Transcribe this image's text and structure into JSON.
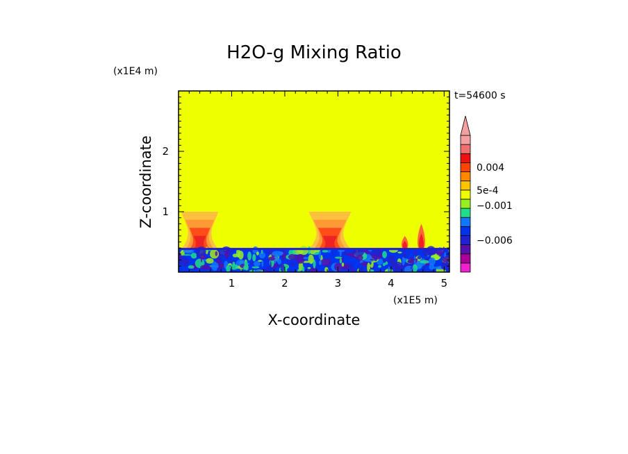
{
  "chart_data": {
    "type": "heatmap",
    "title": "H2O-g Mixing Ratio",
    "xlabel": "X-coordinate",
    "ylabel": "Z-coordinate",
    "x_scale_label": "(x1E5 m)",
    "y_scale_label": "(x1E4 m)",
    "time_label": "t=54600 s",
    "xlim": [
      0,
      5.1
    ],
    "ylim": [
      0,
      3.0
    ],
    "x_ticks": [
      1,
      2,
      3,
      4,
      5
    ],
    "x_tick_labels": [
      "1",
      "2",
      "3",
      "4",
      "5"
    ],
    "y_ticks": [
      1,
      2
    ],
    "y_tick_labels": [
      "1",
      "2"
    ],
    "background_field_color": "#EEFF00",
    "boundary_layer_top": 0.4,
    "plumes": [
      {
        "center": 0.4,
        "halfwidth": 0.35,
        "top": 1.0,
        "colors": [
          "#FFC040",
          "#FF9933",
          "#FF4D1A",
          "#EE2222"
        ]
      },
      {
        "center": 2.85,
        "halfwidth": 0.4,
        "top": 1.0,
        "colors": [
          "#FFC040",
          "#FF9933",
          "#FF4D1A",
          "#EE2222"
        ]
      },
      {
        "center": 4.26,
        "halfwidth": 0.06,
        "top": 0.6,
        "colors": [
          "#FF6633",
          "#EE2222"
        ]
      },
      {
        "center": 4.57,
        "halfwidth": 0.07,
        "top": 0.8,
        "colors": [
          "#FF6633",
          "#EE2222"
        ]
      }
    ],
    "colorbar": {
      "colors": [
        "#EE22CC",
        "#AA0099",
        "#5511AA",
        "#2222CC",
        "#0033EE",
        "#1177FF",
        "#22DD88",
        "#99EE22",
        "#EEFF00",
        "#FFC400",
        "#FF8800",
        "#FF4400",
        "#EE1111",
        "#F07070",
        "#F5A0A0"
      ],
      "labels": [
        {
          "text": "0.004",
          "at_band": 11.5
        },
        {
          "text": "5e-4",
          "at_band": 9
        },
        {
          "text": "−0.001",
          "at_band": 7.3
        },
        {
          "text": "−0.006",
          "at_band": 3.5
        }
      ],
      "extend": "max"
    }
  }
}
